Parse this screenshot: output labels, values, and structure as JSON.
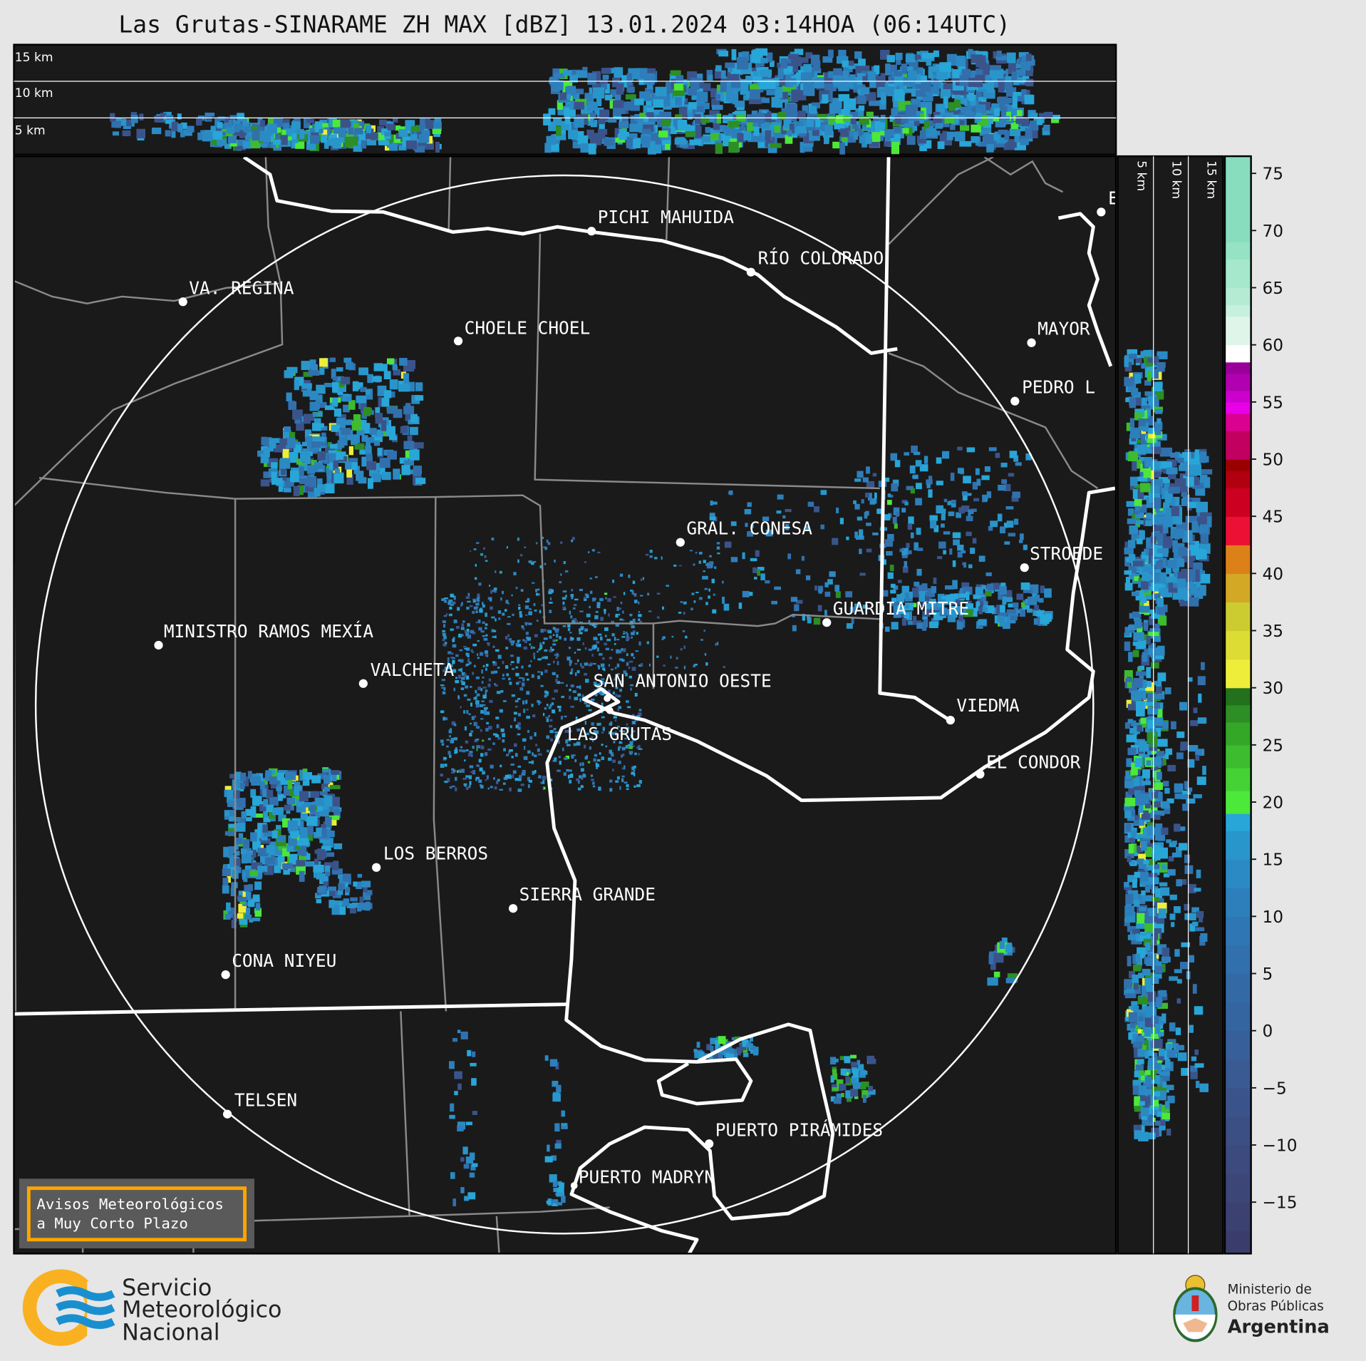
{
  "title": "Las Grutas-SINARAME ZH MAX [dBZ] 13.01.2024 03:14HOA (06:14UTC)",
  "top_section": {
    "labels": [
      "15 km",
      "10 km",
      "5 km"
    ]
  },
  "side_section": {
    "labels": [
      "5 km",
      "10 km",
      "15 km"
    ]
  },
  "cities": [
    "PICHI MAHUIDA",
    "RÍO COLORADO",
    "VA. REGINA",
    "CHOELE CHOEL",
    "MAYOR",
    "PEDRO L",
    "E",
    "GRAL. CONESA",
    "STROEDE",
    "GUARDIA MITRE",
    "MINISTRO RAMOS MEXÍA",
    "VALCHETA",
    "SAN ANTONIO OESTE",
    "VIEDMA",
    "LAS GRUTAS",
    "EL CONDOR",
    "LOS BERROS",
    "SIERRA GRANDE",
    "CONA NIYEU",
    "TELSEN",
    "PUERTO PIRÁMIDES",
    "PUERTO MADRYN"
  ],
  "notice": {
    "line1": "Avisos Meteorológicos",
    "line2": "a Muy Corto Plazo"
  },
  "colorbar": {
    "unit": "dBZ",
    "ticks": [
      "75",
      "70",
      "65",
      "60",
      "55",
      "50",
      "45",
      "40",
      "35",
      "30",
      "25",
      "20",
      "15",
      "10",
      "5",
      "0",
      "−5",
      "−10",
      "−15"
    ],
    "range": [
      -19.5,
      76.5
    ],
    "bins": [
      {
        "from": -20,
        "color": "#3a3d6b"
      },
      {
        "from": -17.5,
        "color": "#3b4272"
      },
      {
        "from": -15,
        "color": "#3c4677"
      },
      {
        "from": -12.5,
        "color": "#3c4a7d"
      },
      {
        "from": -10,
        "color": "#3b4f84"
      },
      {
        "from": -7.5,
        "color": "#3a548b"
      },
      {
        "from": -5,
        "color": "#395a92"
      },
      {
        "from": -2.5,
        "color": "#375f99"
      },
      {
        "from": 0,
        "color": "#3565a0"
      },
      {
        "from": 2.5,
        "color": "#336aa6"
      },
      {
        "from": 5,
        "color": "#3170ad"
      },
      {
        "from": 7.5,
        "color": "#2f77b4"
      },
      {
        "from": 10,
        "color": "#2d7fbb"
      },
      {
        "from": 12.5,
        "color": "#2b8ac3"
      },
      {
        "from": 15,
        "color": "#2996cb"
      },
      {
        "from": 17.5,
        "color": "#28a6d8"
      },
      {
        "from": 19,
        "color": "#4ce83a"
      },
      {
        "from": 21,
        "color": "#44d234"
      },
      {
        "from": 23,
        "color": "#3cbc2e"
      },
      {
        "from": 25,
        "color": "#34a628"
      },
      {
        "from": 27,
        "color": "#2c8e24"
      },
      {
        "from": 28.5,
        "color": "#23701d"
      },
      {
        "from": 30,
        "color": "#eeee3a"
      },
      {
        "from": 32.5,
        "color": "#dcdc34"
      },
      {
        "from": 35,
        "color": "#cccc30"
      },
      {
        "from": 37.5,
        "color": "#d2a824"
      },
      {
        "from": 40,
        "color": "#dc8018"
      },
      {
        "from": 42.5,
        "color": "#ec1034"
      },
      {
        "from": 45,
        "color": "#cc0020"
      },
      {
        "from": 47.5,
        "color": "#b00010"
      },
      {
        "from": 49,
        "color": "#9a0000"
      },
      {
        "from": 50,
        "color": "#c20060"
      },
      {
        "from": 52.5,
        "color": "#da0090"
      },
      {
        "from": 54,
        "color": "#e800e8"
      },
      {
        "from": 55,
        "color": "#cc00cc"
      },
      {
        "from": 56,
        "color": "#b000b0"
      },
      {
        "from": 57.5,
        "color": "#990099"
      },
      {
        "from": 58.5,
        "color": "#ffffff"
      },
      {
        "from": 60,
        "color": "#dff5ea"
      },
      {
        "from": 62.5,
        "color": "#c7f0de"
      },
      {
        "from": 63.5,
        "color": "#b5ebd3"
      },
      {
        "from": 65,
        "color": "#a5e8cc"
      },
      {
        "from": 67.5,
        "color": "#95e2c4"
      },
      {
        "from": 69,
        "color": "#88ddbe"
      }
    ]
  },
  "logos": {
    "smn": {
      "line1": "Servicio",
      "line2": "Meteorológico",
      "line3": "Nacional",
      "accent": "#f9b121",
      "wave": "#1a8fd0"
    },
    "ministry": {
      "line1": "Ministerio de",
      "line2": "Obras Públicas",
      "line3": "Argentina"
    }
  }
}
